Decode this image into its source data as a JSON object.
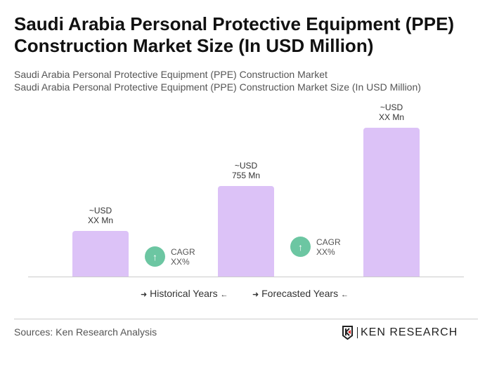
{
  "title": "Saudi Arabia Personal Protective Equipment (PPE) Construction Market Size (In USD Million)",
  "subtitle1": "Saudi Arabia Personal Protective Equipment (PPE) Construction Market",
  "subtitle2": "Saudi Arabia Personal Protective Equipment (PPE) Construction Market Size (In USD Million)",
  "chart_data": {
    "type": "bar",
    "categories": [
      "",
      "",
      ""
    ],
    "values": [
      378,
      755,
      1240
    ],
    "data_labels": [
      [
        "~USD",
        "XX Mn"
      ],
      [
        "~USD",
        "755 Mn"
      ],
      [
        "~USD",
        "XX Mn"
      ]
    ],
    "bar_color": "#dcc2f7",
    "cagr": [
      {
        "label": "CAGR",
        "value": "XX%"
      },
      {
        "label": "CAGR",
        "value": "XX%"
      }
    ],
    "cagr_color": "#6cc6a2",
    "legend": [
      "Historical Years",
      "Forecasted Years"
    ],
    "grid": false
  },
  "sources": "Sources: Ken Research Analysis",
  "logo_text": "KEN RESEARCH",
  "arrow_right": "➜",
  "arrow_left": "←",
  "up_arrow": "↑"
}
